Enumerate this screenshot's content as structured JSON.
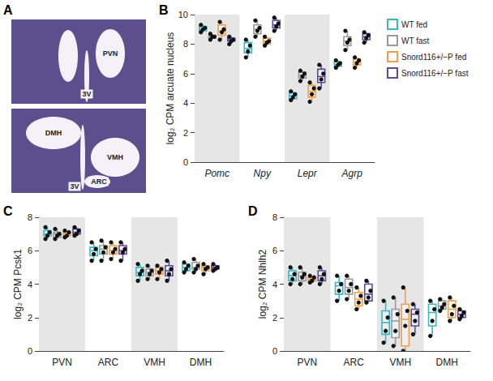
{
  "panel_a": {
    "panel": "A",
    "images": [
      {
        "labels": [
          "PVN",
          "3V"
        ]
      },
      {
        "labels": [
          "DMH",
          "VMH",
          "3V",
          "ARC"
        ]
      }
    ]
  },
  "chart_data": [
    {
      "panel": "B",
      "type": "boxplot",
      "y_label": "log₂ CPM arcuate nucleus",
      "categories": [
        "Pomc",
        "Npy",
        "Lepr",
        "Agrp"
      ],
      "ylim": [
        0,
        10
      ],
      "yticks": [
        0,
        2,
        4,
        6,
        8,
        10
      ],
      "grid": false,
      "legend": "right",
      "series": [
        {
          "name": "WT fed",
          "color": "#36b8c9",
          "boxes": [
            [
              8.8,
              8.9,
              9.0,
              9.2,
              9.3
            ],
            [
              7.1,
              7.4,
              7.7,
              8.1,
              8.3
            ],
            [
              4.2,
              4.3,
              4.5,
              4.7,
              4.8
            ],
            [
              6.4,
              6.5,
              6.6,
              6.8,
              6.9
            ]
          ],
          "points": [
            [
              8.8,
              9.0,
              9.1,
              9.3
            ],
            [
              7.1,
              7.5,
              7.9,
              8.3
            ],
            [
              4.2,
              4.4,
              4.6,
              4.8
            ],
            [
              6.4,
              6.6,
              6.7,
              6.9
            ]
          ]
        },
        {
          "name": "WT fast",
          "color": "#9a9a9a",
          "boxes": [
            [
              8.3,
              8.4,
              8.5,
              8.6,
              8.7
            ],
            [
              8.5,
              8.7,
              9.0,
              9.3,
              9.6
            ],
            [
              5.5,
              5.7,
              5.9,
              6.1,
              6.2
            ],
            [
              7.6,
              7.9,
              8.2,
              8.5,
              8.9
            ]
          ],
          "points": [
            [
              8.3,
              8.5,
              8.5,
              8.7
            ],
            [
              8.5,
              8.9,
              9.1,
              9.6
            ],
            [
              5.5,
              5.8,
              6.0,
              6.2
            ],
            [
              7.6,
              8.1,
              8.3,
              8.9
            ]
          ]
        },
        {
          "name": "Snord116+/−P fed",
          "color": "#f0a04b",
          "boxes": [
            [
              8.3,
              8.6,
              8.9,
              9.3,
              9.5
            ],
            [
              7.9,
              8.0,
              8.2,
              8.4,
              8.5
            ],
            [
              4.1,
              4.4,
              4.8,
              5.2,
              5.4
            ],
            [
              6.4,
              6.6,
              6.8,
              7.0,
              7.1
            ]
          ],
          "points": [
            [
              8.3,
              8.8,
              9.0,
              9.5
            ],
            [
              7.9,
              8.1,
              8.2,
              8.5
            ],
            [
              4.1,
              4.6,
              5.0,
              5.4
            ],
            [
              6.4,
              6.7,
              6.9,
              7.1
            ]
          ]
        },
        {
          "name": "Snord116+/−P fast",
          "color": "#5a4b9c",
          "boxes": [
            [
              8.0,
              8.2,
              8.3,
              8.4,
              8.5
            ],
            [
              8.9,
              9.1,
              9.3,
              9.6,
              9.8
            ],
            [
              5.0,
              5.4,
              5.8,
              6.3,
              6.6
            ],
            [
              8.1,
              8.3,
              8.5,
              8.7,
              8.8
            ]
          ],
          "points": [
            [
              8.0,
              8.2,
              8.3,
              8.5
            ],
            [
              8.9,
              9.2,
              9.4,
              9.8
            ],
            [
              5.0,
              5.6,
              6.0,
              6.6
            ],
            [
              8.1,
              8.4,
              8.6,
              8.8
            ]
          ]
        }
      ]
    },
    {
      "panel": "C",
      "type": "boxplot",
      "y_label": "log₂ CPM Pcsk1",
      "categories": [
        "PVN",
        "ARC",
        "VMH",
        "DMH"
      ],
      "ylim": [
        0,
        8
      ],
      "yticks": [
        0,
        2,
        4,
        6,
        8
      ],
      "grid": false,
      "series": [
        {
          "name": "WT fed",
          "color": "#36b8c9",
          "boxes": [
            [
              6.7,
              6.9,
              7.0,
              7.2,
              7.4
            ],
            [
              5.4,
              5.7,
              6.0,
              6.2,
              6.5
            ],
            [
              4.2,
              4.5,
              4.7,
              5.0,
              5.2
            ],
            [
              4.7,
              4.8,
              5.0,
              5.2,
              5.3
            ]
          ],
          "points": [
            [
              6.7,
              6.9,
              7.1,
              7.4
            ],
            [
              5.4,
              5.8,
              6.1,
              6.5
            ],
            [
              4.2,
              4.6,
              4.8,
              5.2
            ],
            [
              4.7,
              4.9,
              5.1,
              5.3
            ]
          ]
        },
        {
          "name": "WT fast",
          "color": "#9a9a9a",
          "boxes": [
            [
              6.7,
              6.8,
              7.0,
              7.1,
              7.3
            ],
            [
              5.4,
              5.8,
              6.1,
              6.3,
              6.6
            ],
            [
              4.3,
              4.5,
              4.7,
              4.9,
              5.1
            ],
            [
              4.7,
              4.9,
              5.0,
              5.3,
              5.5
            ]
          ],
          "points": [
            [
              6.7,
              6.9,
              7.0,
              7.3
            ],
            [
              5.4,
              5.9,
              6.2,
              6.6
            ],
            [
              4.3,
              4.6,
              4.8,
              5.1
            ],
            [
              4.7,
              4.9,
              5.1,
              5.5
            ]
          ]
        },
        {
          "name": "Snord116+/−P fed",
          "color": "#f0a04b",
          "boxes": [
            [
              6.8,
              6.9,
              7.0,
              7.1,
              7.2
            ],
            [
              5.5,
              5.8,
              6.0,
              6.3,
              6.5
            ],
            [
              4.3,
              4.6,
              4.8,
              5.0,
              5.1
            ],
            [
              4.6,
              4.8,
              5.0,
              5.1,
              5.2
            ]
          ],
          "points": [
            [
              6.8,
              6.9,
              7.1,
              7.2
            ],
            [
              5.5,
              5.9,
              6.1,
              6.5
            ],
            [
              4.3,
              4.7,
              4.9,
              5.1
            ],
            [
              4.6,
              4.9,
              5.0,
              5.2
            ]
          ]
        },
        {
          "name": "Snord116+/−P fast",
          "color": "#5a4b9c",
          "boxes": [
            [
              6.9,
              7.0,
              7.1,
              7.3,
              7.4
            ],
            [
              5.4,
              5.8,
              6.0,
              6.3,
              6.5
            ],
            [
              4.2,
              4.5,
              4.8,
              5.1,
              5.4
            ],
            [
              4.8,
              4.9,
              5.0,
              5.1,
              5.2
            ]
          ],
          "points": [
            [
              6.9,
              7.0,
              7.2,
              7.4
            ],
            [
              5.4,
              5.9,
              6.1,
              6.5
            ],
            [
              4.2,
              4.6,
              4.9,
              5.4
            ],
            [
              4.8,
              4.9,
              5.0,
              5.2
            ]
          ]
        }
      ]
    },
    {
      "panel": "D",
      "type": "boxplot",
      "y_label": "log₂ CPM Nhlh2",
      "categories": [
        "PVN",
        "ARC",
        "VMH",
        "DMH"
      ],
      "ylim": [
        0,
        8
      ],
      "yticks": [
        0,
        2,
        4,
        6,
        8
      ],
      "grid": false,
      "series": [
        {
          "name": "WT fed",
          "color": "#36b8c9",
          "boxes": [
            [
              4.0,
              4.2,
              4.5,
              4.8,
              5.0
            ],
            [
              3.0,
              3.4,
              3.9,
              4.1,
              4.5
            ],
            [
              0.5,
              1.0,
              1.7,
              2.4,
              3.0
            ],
            [
              0.9,
              1.5,
              2.3,
              2.8,
              3.0
            ]
          ],
          "points": [
            [
              4.0,
              4.3,
              4.6,
              5.0
            ],
            [
              3.0,
              3.6,
              4.0,
              4.5
            ],
            [
              0.5,
              1.2,
              2.0,
              3.0
            ],
            [
              0.9,
              1.8,
              2.5,
              3.0
            ]
          ]
        },
        {
          "name": "WT fast",
          "color": "#9a9a9a",
          "boxes": [
            [
              4.0,
              4.2,
              4.5,
              4.7,
              5.0
            ],
            [
              3.1,
              3.4,
              3.8,
              4.3,
              4.5
            ],
            [
              0.3,
              0.8,
              1.8,
              2.5,
              3.2
            ],
            [
              2.4,
              2.5,
              2.7,
              3.0,
              3.1
            ]
          ],
          "points": [
            [
              4.0,
              4.4,
              4.6,
              5.0
            ],
            [
              3.1,
              3.6,
              4.0,
              4.5
            ],
            [
              0.3,
              1.2,
              2.2,
              3.2
            ],
            [
              2.4,
              2.6,
              2.8,
              3.1
            ]
          ]
        },
        {
          "name": "Snord116+/−P fed",
          "color": "#f0a04b",
          "boxes": [
            [
              4.1,
              4.2,
              4.3,
              4.4,
              4.5
            ],
            [
              2.5,
              2.7,
              3.1,
              3.5,
              3.8
            ],
            [
              0.0,
              0.3,
              1.9,
              2.8,
              3.8
            ],
            [
              1.8,
              2.0,
              2.5,
              3.0,
              3.2
            ]
          ],
          "points": [
            [
              4.1,
              4.2,
              4.4,
              4.5
            ],
            [
              2.5,
              2.9,
              3.3,
              3.8
            ],
            [
              0.0,
              1.5,
              2.4,
              3.8
            ],
            [
              1.8,
              2.2,
              2.7,
              3.2
            ]
          ]
        },
        {
          "name": "Snord116+/−P fast",
          "color": "#5a4b9c",
          "boxes": [
            [
              4.0,
              4.2,
              4.5,
              4.8,
              5.0
            ],
            [
              2.9,
              3.0,
              3.4,
              4.0,
              4.2
            ],
            [
              1.0,
              1.5,
              2.2,
              2.5,
              2.8
            ],
            [
              1.9,
              2.0,
              2.2,
              2.4,
              2.5
            ]
          ],
          "points": [
            [
              4.0,
              4.3,
              4.6,
              5.0
            ],
            [
              2.9,
              3.2,
              3.6,
              4.2
            ],
            [
              1.0,
              1.8,
              2.3,
              2.8
            ],
            [
              1.9,
              2.1,
              2.3,
              2.5
            ]
          ]
        }
      ]
    }
  ]
}
